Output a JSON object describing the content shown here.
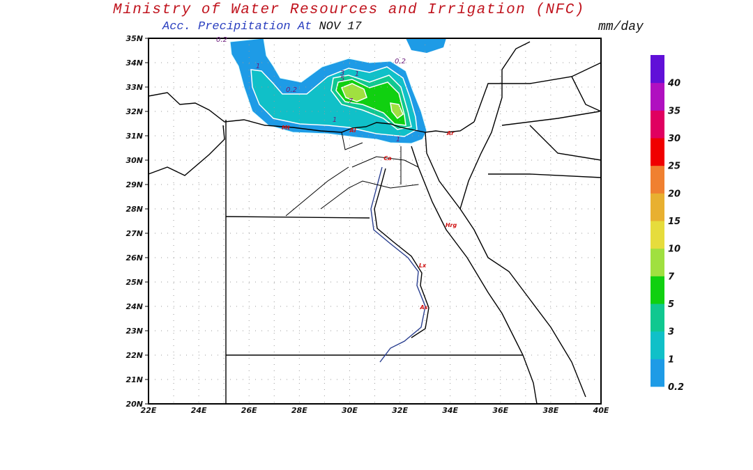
{
  "header": {
    "title": "Ministry of Water Resources and Irrigation (NFC)",
    "subtitle_prefix": "Acc. Precipitation  At",
    "date": "NOV 17",
    "units": "mm/day"
  },
  "map": {
    "lat_labels": [
      "20N",
      "21N",
      "22N",
      "23N",
      "24N",
      "25N",
      "26N",
      "27N",
      "28N",
      "29N",
      "30N",
      "31N",
      "32N",
      "33N",
      "34N",
      "35N"
    ],
    "lon_labels": [
      "22E",
      "24E",
      "26E",
      "28E",
      "30E",
      "32E",
      "34E",
      "36E",
      "38E",
      "40E"
    ],
    "contour_labels": [
      "0.2",
      "1",
      "0.2",
      "3",
      "5",
      "1",
      "7",
      "1",
      "1",
      "0.2"
    ],
    "station_labels": [
      "Mt",
      "Al",
      "Ca",
      "Ar",
      "Hrg",
      "Lx",
      "As"
    ]
  },
  "colorbar": {
    "levels": [
      "0.2",
      "1",
      "3",
      "5",
      "7",
      "10",
      "15",
      "20",
      "25",
      "30",
      "35",
      "40"
    ],
    "colors": [
      "#1e9be6",
      "#10c0c8",
      "#10c890",
      "#10d010",
      "#a0e040",
      "#e6dc3c",
      "#e8b030",
      "#f08030",
      "#f00000",
      "#e00060",
      "#b010c0",
      "#6010d8"
    ]
  }
}
